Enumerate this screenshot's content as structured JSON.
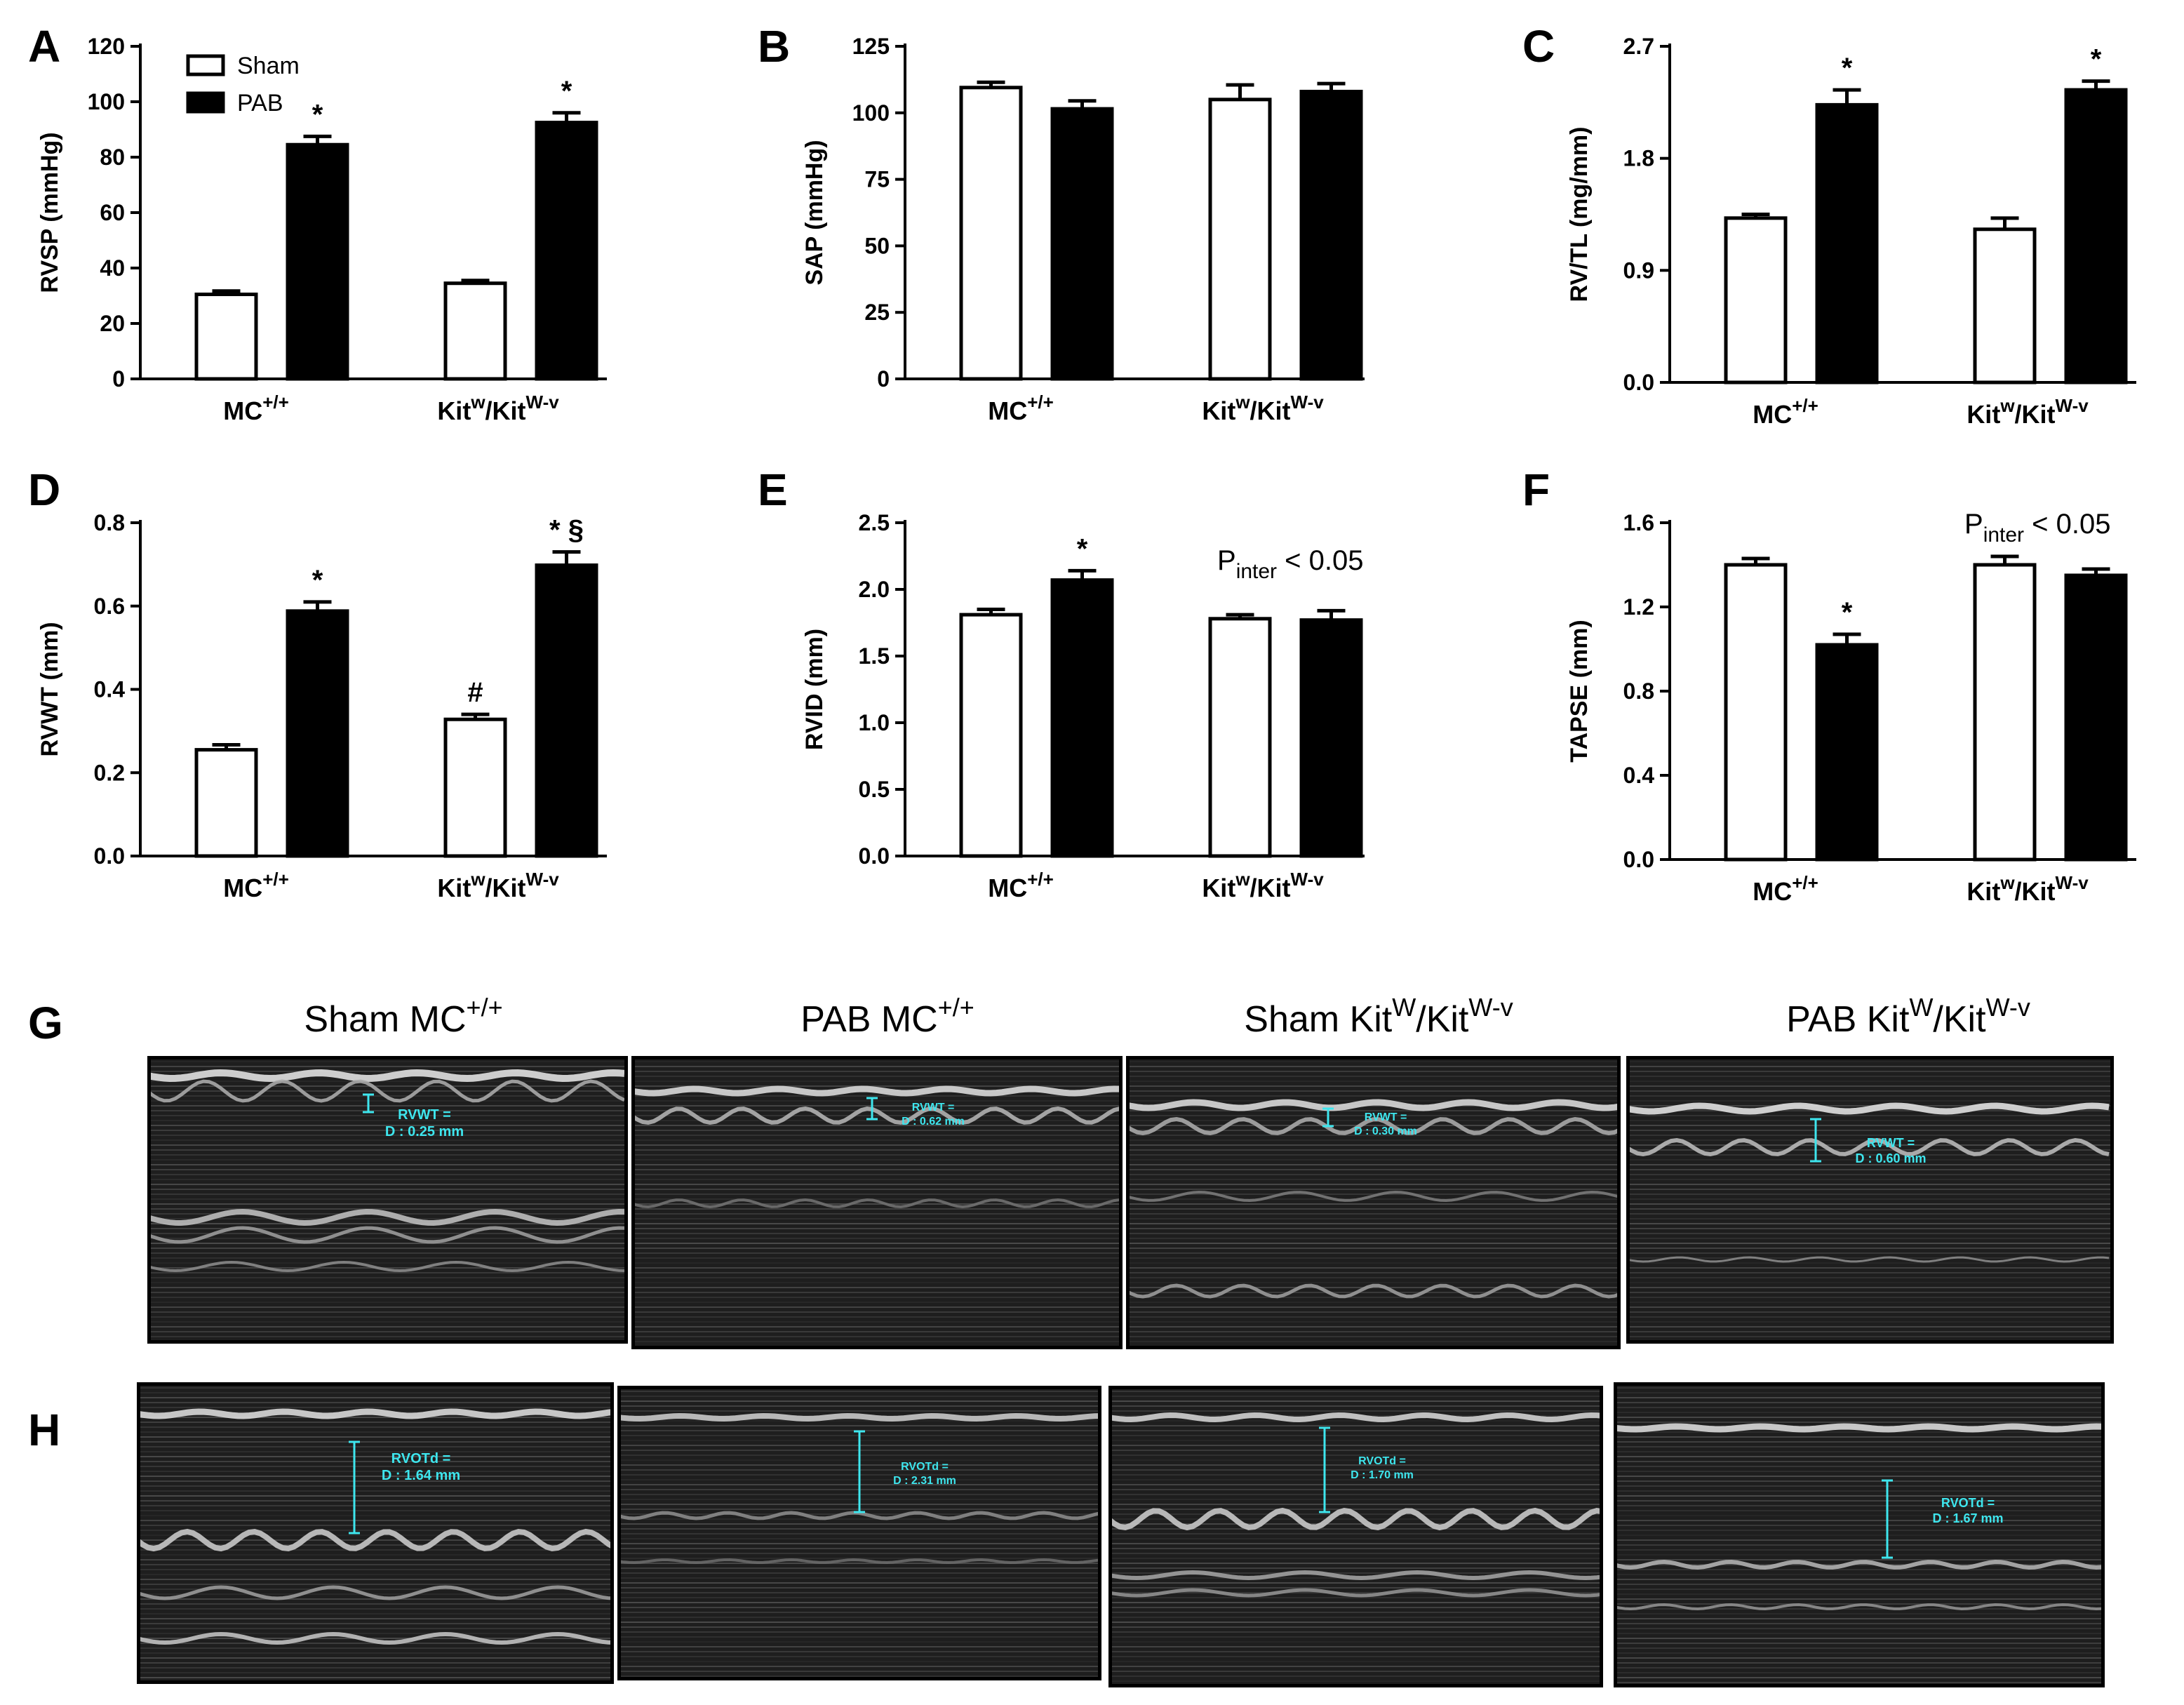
{
  "legend": {
    "sham": "Sham",
    "pab": "PAB"
  },
  "groups": {
    "g1": {
      "base": "MC",
      "sup": "+/+"
    },
    "g2": {
      "base1": "Kit",
      "sup1": "w",
      "base2": "/Kit",
      "sup2": "W-v"
    }
  },
  "interaction_note": {
    "prefix": "P",
    "sub": "inter",
    "suffix": " < 0.05"
  },
  "chart_data": [
    {
      "panel": "A",
      "type": "bar",
      "ylabel": "RVSP (mmHg)",
      "ylim": [
        0,
        120
      ],
      "ticks": [
        "0",
        "20",
        "40",
        "60",
        "80",
        "100",
        "120"
      ],
      "legend": "top-left",
      "categories": [
        "MC+/+",
        "Kitw/KitW-v"
      ],
      "series": [
        {
          "name": "Sham",
          "values": [
            30.5,
            34.5
          ],
          "errors": [
            1.2,
            1.0
          ],
          "marks": [
            "",
            ""
          ]
        },
        {
          "name": "PAB",
          "values": [
            84.5,
            92.5
          ],
          "errors": [
            3.0,
            3.5
          ],
          "marks": [
            "*",
            "*"
          ]
        }
      ]
    },
    {
      "panel": "B",
      "type": "bar",
      "ylabel": "SAP (mmHg)",
      "ylim": [
        0,
        125
      ],
      "ticks": [
        "0",
        "25",
        "50",
        "75",
        "100",
        "125"
      ],
      "categories": [
        "MC+/+",
        "Kitw/KitW-v"
      ],
      "series": [
        {
          "name": "Sham",
          "values": [
            109.5,
            105
          ],
          "errors": [
            2.0,
            5.5
          ],
          "marks": [
            "",
            ""
          ]
        },
        {
          "name": "PAB",
          "values": [
            101.5,
            108
          ],
          "errors": [
            3.0,
            3.0
          ],
          "marks": [
            "",
            ""
          ]
        }
      ]
    },
    {
      "panel": "C",
      "type": "bar",
      "ylabel": "RV/TL (mg/mm)",
      "ylim": [
        0,
        2.7
      ],
      "ticks": [
        "0.0",
        "0.9",
        "1.8",
        "2.7"
      ],
      "categories": [
        "MC+/+",
        "Kitw/KitW-v"
      ],
      "series": [
        {
          "name": "Sham",
          "values": [
            1.32,
            1.23
          ],
          "errors": [
            0.03,
            0.09
          ],
          "marks": [
            "",
            ""
          ]
        },
        {
          "name": "PAB",
          "values": [
            2.23,
            2.35
          ],
          "errors": [
            0.12,
            0.07
          ],
          "marks": [
            "*",
            "*"
          ]
        }
      ]
    },
    {
      "panel": "D",
      "type": "bar",
      "ylabel": "RVWT (mm)",
      "ylim": [
        0,
        0.8
      ],
      "ticks": [
        "0.0",
        "0.2",
        "0.4",
        "0.6",
        "0.8"
      ],
      "categories": [
        "MC+/+",
        "Kitw/KitW-v"
      ],
      "series": [
        {
          "name": "Sham",
          "values": [
            0.255,
            0.328
          ],
          "errors": [
            0.012,
            0.012
          ],
          "marks": [
            "",
            "#"
          ]
        },
        {
          "name": "PAB",
          "values": [
            0.588,
            0.698
          ],
          "errors": [
            0.022,
            0.032
          ],
          "marks": [
            "*",
            "* §"
          ]
        }
      ]
    },
    {
      "panel": "E",
      "type": "bar",
      "ylabel": "RVID (mm)",
      "ylim": [
        0,
        2.5
      ],
      "ticks": [
        "0.0",
        "0.5",
        "1.0",
        "1.5",
        "2.0",
        "2.5"
      ],
      "categories": [
        "MC+/+",
        "Kitw/KitW-v"
      ],
      "series": [
        {
          "name": "Sham",
          "values": [
            1.81,
            1.78
          ],
          "errors": [
            0.04,
            0.03
          ],
          "marks": [
            "",
            ""
          ]
        },
        {
          "name": "PAB",
          "values": [
            2.07,
            1.77
          ],
          "errors": [
            0.07,
            0.07
          ],
          "marks": [
            "*",
            ""
          ]
        }
      ]
    },
    {
      "panel": "F",
      "type": "bar",
      "ylabel": "TAPSE (mm)",
      "ylim": [
        0,
        1.6
      ],
      "ticks": [
        "0.0",
        "0.4",
        "0.8",
        "1.2",
        "1.6"
      ],
      "categories": [
        "MC+/+",
        "Kitw/KitW-v"
      ],
      "series": [
        {
          "name": "Sham",
          "values": [
            1.4,
            1.4
          ],
          "errors": [
            0.03,
            0.04
          ],
          "marks": [
            "",
            ""
          ]
        },
        {
          "name": "PAB",
          "values": [
            1.02,
            1.35
          ],
          "errors": [
            0.05,
            0.03
          ],
          "marks": [
            "*",
            ""
          ]
        }
      ]
    }
  ],
  "panel_g": {
    "letter": "G",
    "images": [
      {
        "title_base": "Sham MC",
        "title_sup": "+/+",
        "title_base2": "",
        "title_sup2": "",
        "label": "RVWT =",
        "value": "D : 0.25 mm"
      },
      {
        "title_base": "PAB MC",
        "title_sup": "+/+",
        "title_base2": "",
        "title_sup2": "",
        "label": "RVWT =",
        "value": "D : 0.62 mm"
      },
      {
        "title_base": "Sham Kit",
        "title_sup": "W",
        "title_base2": "/Kit",
        "title_sup2": "W-v",
        "label": "RVWT =",
        "value": "D : 0.30 mm"
      },
      {
        "title_base": "PAB Kit",
        "title_sup": "W",
        "title_base2": "/Kit",
        "title_sup2": "W-v",
        "label": "RVWT =",
        "value": "D : 0.60 mm"
      }
    ]
  },
  "panel_h": {
    "letter": "H",
    "images": [
      {
        "label": "RVOTd =",
        "value": "D : 1.64 mm"
      },
      {
        "label": "RVOTd =",
        "value": "D : 2.31 mm"
      },
      {
        "label": "RVOTd =",
        "value": "D : 1.70 mm"
      },
      {
        "label": "RVOTd =",
        "value": "D : 1.67 mm"
      }
    ]
  },
  "colors": {
    "sham_fill": "#ffffff",
    "pab_fill": "#000000",
    "annotation": "#3ee6ee",
    "echo_bg": "#1e1e1e"
  }
}
